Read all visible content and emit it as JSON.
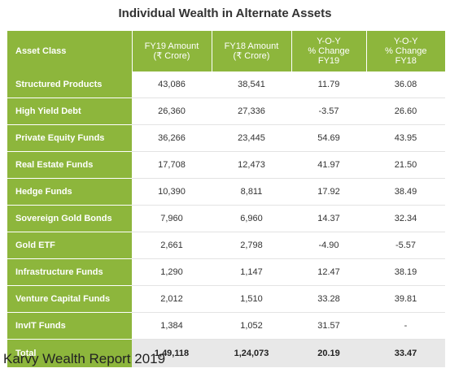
{
  "title": "Individual Wealth in Alternate Assets",
  "columns": [
    {
      "lines": [
        "Asset Class"
      ]
    },
    {
      "lines": [
        "FY19 Amount",
        "(₹ Crore)"
      ]
    },
    {
      "lines": [
        "FY18 Amount",
        "(₹ Crore)"
      ]
    },
    {
      "lines": [
        "Y-O-Y",
        "% Change",
        "FY19"
      ]
    },
    {
      "lines": [
        "Y-O-Y",
        "% Change",
        "FY18"
      ]
    }
  ],
  "rows": [
    {
      "asset": "Structured Products",
      "fy19": "43,086",
      "fy18": "38,541",
      "yoy19": "11.79",
      "yoy18": "36.08"
    },
    {
      "asset": "High Yield Debt",
      "fy19": "26,360",
      "fy18": "27,336",
      "yoy19": "-3.57",
      "yoy18": "26.60"
    },
    {
      "asset": "Private Equity Funds",
      "fy19": "36,266",
      "fy18": "23,445",
      "yoy19": "54.69",
      "yoy18": "43.95"
    },
    {
      "asset": "Real Estate Funds",
      "fy19": "17,708",
      "fy18": "12,473",
      "yoy19": "41.97",
      "yoy18": "21.50"
    },
    {
      "asset": "Hedge Funds",
      "fy19": "10,390",
      "fy18": "8,811",
      "yoy19": "17.92",
      "yoy18": "38.49"
    },
    {
      "asset": "Sovereign Gold Bonds",
      "fy19": "7,960",
      "fy18": "6,960",
      "yoy19": "14.37",
      "yoy18": "32.34"
    },
    {
      "asset": "Gold ETF",
      "fy19": "2,661",
      "fy18": "2,798",
      "yoy19": "-4.90",
      "yoy18": "-5.57"
    },
    {
      "asset": "Infrastructure Funds",
      "fy19": "1,290",
      "fy18": "1,147",
      "yoy19": "12.47",
      "yoy18": "38.19"
    },
    {
      "asset": "Venture Capital Funds",
      "fy19": "2,012",
      "fy18": "1,510",
      "yoy19": "33.28",
      "yoy18": "39.81"
    },
    {
      "asset": "InvIT Funds",
      "fy19": "1,384",
      "fy18": "1,052",
      "yoy19": "31.57",
      "yoy18": "-"
    }
  ],
  "total": {
    "asset": "Total",
    "fy19": "1,49,118",
    "fy18": "1,24,073",
    "yoy19": "20.19",
    "yoy18": "33.47"
  },
  "source": "Karvy Wealth Report 2019",
  "colors": {
    "header_green": "#8db63c",
    "total_bg": "#e8e8e8"
  }
}
